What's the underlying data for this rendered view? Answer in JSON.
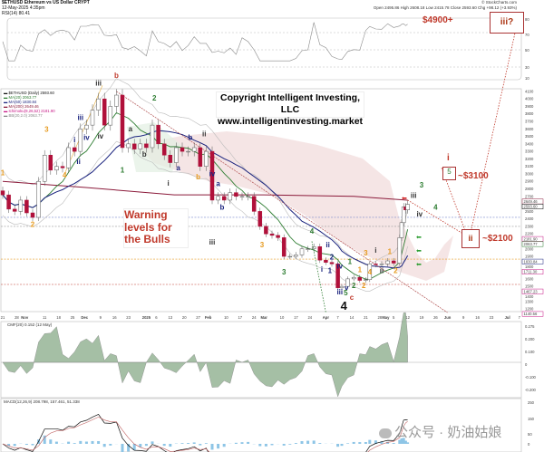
{
  "header": {
    "symbol_line": "$ETHUSD Ethereum vs US Dollar CRYPT",
    "date_line": "12-May-2025 4:35pm",
    "quote_line": "Open 2495.86  High 2608.18  Low 2415.78  Close 2593.60  Chg +98.12 (+3.93%)",
    "credit": "© StockCharts.com",
    "rsi_label": "RSI(14) 80.41"
  },
  "legend": [
    {
      "text": "$ETHUSD (Daily) 2593.60",
      "color": "#111111"
    },
    {
      "text": "MA(20) 2063.77",
      "color": "#2e7d32"
    },
    {
      "text": "MA(50) 1830.84",
      "color": "#1a237e"
    },
    {
      "text": "MA(200) 2649.46",
      "color": "#8b1a3a"
    },
    {
      "text": "Ichimoku(9,26,52) 2181.90",
      "color": "#c71585"
    },
    {
      "text": "BB(20,2.0) 2063.77",
      "color": "#888888"
    }
  ],
  "copyright": {
    "line1": "Copyright Intelligent Investing, LLC",
    "line2": "www.intelligentinvesting.market"
  },
  "warning": {
    "line1": "Warning",
    "line2": "levels for",
    "line3": "the Bulls"
  },
  "targets": {
    "iii_label": "iii?",
    "iii_price": "$4900+",
    "i_label": "i",
    "five_label": "5",
    "i_price": "~$3100",
    "ii_label": "ii",
    "ii_price": "~$2100"
  },
  "cmf_label": "CMF(20) 0.152 (12 May)",
  "macd_label": "MACD(12,26,9) 208.798, 157.461, 51.338",
  "watermark": "公众号 · 奶油姑娘",
  "colors": {
    "down": "#b0103a",
    "up": "#ffffff",
    "annotation_red": "#c0392b",
    "wave_green": "#2e7d32",
    "wave_navy": "#1a237e",
    "wave_orange": "#e69b22",
    "cloud": "#f3dede"
  },
  "chart_data": {
    "type": "candlestick",
    "ylim": [
      1200,
      4100
    ],
    "y_ticks": [
      4100,
      4000,
      3900,
      3800,
      3700,
      3600,
      3500,
      3400,
      3300,
      3200,
      3100,
      3000,
      2900,
      2800,
      2700,
      2500,
      2400,
      2300,
      2200,
      2000,
      1900,
      1800,
      1600,
      1500,
      1400,
      1300,
      1200
    ],
    "price_tags": [
      {
        "value": "2649.46",
        "price": 2649.46,
        "color": "#8b1a3a"
      },
      {
        "value": "2593.60",
        "price": 2593.6,
        "color": "#000000"
      },
      {
        "value": "2181.90",
        "price": 2181.9,
        "color": "#c71585"
      },
      {
        "value": "2063.77",
        "price": 2063.77,
        "color": "#2e7d32"
      },
      {
        "value": "1830.84",
        "price": 1830.84,
        "color": "#1a237e"
      },
      {
        "value": "1711.30",
        "price": 1711.3,
        "color": "#c71585"
      },
      {
        "value": "1467.23",
        "price": 1467.23,
        "color": "#c71585"
      },
      {
        "value": "1140.56",
        "price": 1140.56,
        "color": "#c71585"
      }
    ],
    "x_ticks": [
      [
        "21",
        "2024-10-21"
      ],
      [
        "28",
        "2024-10-28"
      ],
      [
        "Nov",
        "2024-11-01"
      ],
      [
        "11",
        "2024-11-11"
      ],
      [
        "18",
        "2024-11-18"
      ],
      [
        "25",
        "2024-11-25"
      ],
      [
        "Dec",
        "2024-12-01"
      ],
      [
        "9",
        "2024-12-09"
      ],
      [
        "16",
        "2024-12-16"
      ],
      [
        "23",
        "2024-12-23"
      ],
      [
        "2025",
        "2025-01-01"
      ],
      [
        "6",
        "2025-01-06"
      ],
      [
        "13",
        "2025-01-13"
      ],
      [
        "20",
        "2025-01-20"
      ],
      [
        "27",
        "2025-01-27"
      ],
      [
        "Feb",
        "2025-02-01"
      ],
      [
        "10",
        "2025-02-10"
      ],
      [
        "17",
        "2025-02-17"
      ],
      [
        "24",
        "2025-02-24"
      ],
      [
        "Mar",
        "2025-03-01"
      ],
      [
        "10",
        "2025-03-10"
      ],
      [
        "17",
        "2025-03-17"
      ],
      [
        "24",
        "2025-03-24"
      ],
      [
        "Apr",
        "2025-04-01"
      ],
      [
        "7",
        "2025-04-07"
      ],
      [
        "14",
        "2025-04-14"
      ],
      [
        "21",
        "2025-04-21"
      ],
      [
        "28",
        "2025-04-28"
      ],
      [
        "May",
        "2025-05-01"
      ],
      [
        "5",
        "2025-05-05"
      ],
      [
        "12",
        "2025-05-12"
      ],
      [
        "19",
        "2025-05-19"
      ],
      [
        "26",
        "2025-05-26"
      ],
      [
        "Jun",
        "2025-06-01"
      ],
      [
        "9",
        "2025-06-09"
      ],
      [
        "16",
        "2025-06-16"
      ],
      [
        "23",
        "2025-06-23"
      ],
      [
        "Jul",
        "2025-07-01"
      ],
      [
        "7",
        "2025-07-07"
      ]
    ],
    "closes": [
      [
        "2024-10-21",
        2720
      ],
      [
        "2024-10-24",
        2530
      ],
      [
        "2024-10-27",
        2500
      ],
      [
        "2024-10-30",
        2650
      ],
      [
        "2024-11-02",
        2480
      ],
      [
        "2024-11-05",
        2420
      ],
      [
        "2024-11-08",
        2900
      ],
      [
        "2024-11-11",
        3250
      ],
      [
        "2024-11-14",
        3050
      ],
      [
        "2024-11-17",
        3100
      ],
      [
        "2024-11-20",
        3080
      ],
      [
        "2024-11-23",
        3350
      ],
      [
        "2024-11-26",
        3300
      ],
      [
        "2024-11-29",
        3600
      ],
      [
        "2024-12-02",
        3650
      ],
      [
        "2024-12-05",
        3850
      ],
      [
        "2024-12-08",
        4000
      ],
      [
        "2024-12-11",
        3650
      ],
      [
        "2024-12-14",
        3900
      ],
      [
        "2024-12-17",
        4050
      ],
      [
        "2024-12-20",
        3350
      ],
      [
        "2024-12-23",
        3400
      ],
      [
        "2024-12-26",
        3330
      ],
      [
        "2024-12-29",
        3400
      ],
      [
        "2025-01-01",
        3350
      ],
      [
        "2025-01-04",
        3650
      ],
      [
        "2025-01-07",
        3400
      ],
      [
        "2025-01-10",
        3250
      ],
      [
        "2025-01-13",
        3150
      ],
      [
        "2025-01-16",
        3350
      ],
      [
        "2025-01-19",
        3300
      ],
      [
        "2025-01-22",
        3300
      ],
      [
        "2025-01-25",
        3350
      ],
      [
        "2025-01-28",
        3100
      ],
      [
        "2025-01-31",
        3300
      ],
      [
        "2025-02-03",
        2650
      ],
      [
        "2025-02-06",
        2700
      ],
      [
        "2025-02-09",
        2650
      ],
      [
        "2025-02-12",
        2750
      ],
      [
        "2025-02-15",
        2700
      ],
      [
        "2025-02-18",
        2700
      ],
      [
        "2025-02-21",
        2700
      ],
      [
        "2025-02-24",
        2500
      ],
      [
        "2025-02-27",
        2300
      ],
      [
        "2025-03-02",
        2200
      ],
      [
        "2025-03-05",
        2180
      ],
      [
        "2025-03-08",
        2150
      ],
      [
        "2025-03-11",
        1900
      ],
      [
        "2025-03-14",
        1900
      ],
      [
        "2025-03-17",
        1920
      ],
      [
        "2025-03-20",
        2000
      ],
      [
        "2025-03-23",
        2000
      ],
      [
        "2025-03-26",
        2030
      ],
      [
        "2025-03-29",
        1850
      ],
      [
        "2025-04-01",
        1820
      ],
      [
        "2025-04-04",
        1800
      ],
      [
        "2025-04-07",
        1480
      ],
      [
        "2025-04-09",
        1500
      ],
      [
        "2025-04-12",
        1600
      ],
      [
        "2025-04-15",
        1620
      ],
      [
        "2025-04-18",
        1580
      ],
      [
        "2025-04-21",
        1590
      ],
      [
        "2025-04-23",
        1800
      ],
      [
        "2025-04-26",
        1790
      ],
      [
        "2025-04-29",
        1800
      ],
      [
        "2025-05-02",
        1840
      ],
      [
        "2025-05-05",
        1810
      ],
      [
        "2025-05-08",
        2150
      ],
      [
        "2025-05-09",
        2350
      ],
      [
        "2025-05-10",
        2560
      ],
      [
        "2025-05-11",
        2520
      ],
      [
        "2025-05-12",
        2593.6
      ]
    ],
    "ma200": [
      [
        "2024-10-21",
        2900
      ],
      [
        "2024-12-01",
        2820
      ],
      [
        "2025-01-15",
        2720
      ],
      [
        "2025-03-01",
        2720
      ],
      [
        "2025-04-15",
        2700
      ],
      [
        "2025-05-12",
        2649.46
      ]
    ],
    "horizontal_levels": [
      {
        "price": 2420,
        "color": "#7986cb"
      },
      {
        "price": 2300,
        "color": "#999999"
      },
      {
        "price": 1864,
        "color": "#e69b22"
      },
      {
        "price": 1526,
        "color": "#c0392b"
      }
    ],
    "wave_labels": [
      {
        "text": "iii",
        "date": "2024-12-08",
        "price": 4180,
        "color": "#333333"
      },
      {
        "text": "b",
        "date": "2024-12-17",
        "price": 4280,
        "color": "#c0392b"
      },
      {
        "text": "3",
        "date": "2024-11-12",
        "price": 3560,
        "color": "#e69b22"
      },
      {
        "text": "iii",
        "date": "2024-11-29",
        "price": 3720,
        "color": "#1a237e"
      },
      {
        "text": "i",
        "date": "2024-11-26",
        "price": 3420,
        "color": "#1a237e"
      },
      {
        "text": "iv",
        "date": "2024-12-02",
        "price": 3450,
        "color": "#1a237e"
      },
      {
        "text": "iv",
        "date": "2024-12-09",
        "price": 3470,
        "color": "#333333"
      },
      {
        "text": "ii",
        "date": "2024-11-28",
        "price": 3130,
        "color": "#1a237e"
      },
      {
        "text": "4",
        "date": "2024-11-21",
        "price": 2950,
        "color": "#e69b22"
      },
      {
        "text": "1",
        "date": "2024-12-20",
        "price": 3020,
        "color": "#2e7d32"
      },
      {
        "text": "1",
        "date": "2024-10-21",
        "price": 2980,
        "color": "#e69b22"
      },
      {
        "text": "2",
        "date": "2024-11-05",
        "price": 2290,
        "color": "#e69b22"
      },
      {
        "text": "a",
        "date": "2024-12-24",
        "price": 3570,
        "color": "#333333"
      },
      {
        "text": "b",
        "date": "2024-12-31",
        "price": 3230,
        "color": "#333333"
      },
      {
        "text": "2",
        "date": "2025-01-05",
        "price": 3980,
        "color": "#2e7d32"
      },
      {
        "text": "i",
        "date": "2025-01-12",
        "price": 2840,
        "color": "#333333"
      },
      {
        "text": "a",
        "date": "2025-01-17",
        "price": 3050,
        "color": "#1a237e"
      },
      {
        "text": "b",
        "date": "2025-01-23",
        "price": 3450,
        "color": "#1a237e"
      },
      {
        "text": "b",
        "date": "2025-01-27",
        "price": 2930,
        "color": "#e69b22"
      },
      {
        "text": "ii",
        "date": "2025-01-30",
        "price": 3500,
        "color": "#333333"
      },
      {
        "text": "iv",
        "date": "2025-02-03",
        "price": 2970,
        "color": "#1a237e"
      },
      {
        "text": "a",
        "date": "2025-02-06",
        "price": 2870,
        "color": "#1a237e"
      },
      {
        "text": "b",
        "date": "2025-02-08",
        "price": 2520,
        "color": "#1a237e"
      },
      {
        "text": "iii",
        "date": "2025-02-03",
        "price": 2060,
        "color": "#333333"
      },
      {
        "text": "3",
        "date": "2025-02-28",
        "price": 2020,
        "color": "#e69b22"
      },
      {
        "text": "3",
        "date": "2025-03-11",
        "price": 1660,
        "color": "#2e7d32"
      },
      {
        "text": "4",
        "date": "2025-03-25",
        "price": 2200,
        "color": "#2e7d32"
      },
      {
        "text": "i",
        "date": "2025-03-30",
        "price": 1695,
        "color": "#1a237e"
      },
      {
        "text": "ii",
        "date": "2025-04-02",
        "price": 2020,
        "color": "#1a237e"
      },
      {
        "text": "1",
        "date": "2025-04-03",
        "price": 1680,
        "color": "#1a237e"
      },
      {
        "text": "2",
        "date": "2025-04-04",
        "price": 1860,
        "color": "#1a237e"
      },
      {
        "text": "iv",
        "date": "2025-04-08",
        "price": 1740,
        "color": "#1a237e"
      },
      {
        "text": "1",
        "date": "2025-04-13",
        "price": 1800,
        "color": "#2e7d32"
      },
      {
        "text": "iii",
        "date": "2025-04-08",
        "price": 1357,
        "color": "#1a237e"
      },
      {
        "text": "v",
        "date": "2025-04-10",
        "price": 1450,
        "color": "#1a237e"
      },
      {
        "text": "5",
        "date": "2025-04-11",
        "price": 1380,
        "color": "#2e7d32"
      },
      {
        "text": "c",
        "date": "2025-04-14",
        "price": 1320,
        "color": "#c0392b"
      },
      {
        "text": "2",
        "date": "2025-04-15",
        "price": 1480,
        "color": "#2e7d32"
      },
      {
        "text": "1",
        "date": "2025-04-18",
        "price": 1690,
        "color": "#e69b22"
      },
      {
        "text": "2",
        "date": "2025-04-20",
        "price": 1480,
        "color": "#e69b22"
      },
      {
        "text": "3",
        "date": "2025-04-21",
        "price": 1910,
        "color": "#e69b22"
      },
      {
        "text": "4",
        "date": "2025-04-23",
        "price": 1660,
        "color": "#e69b22"
      },
      {
        "text": "i",
        "date": "2025-04-26",
        "price": 1950,
        "color": "#333333"
      },
      {
        "text": "ii",
        "date": "2025-04-29",
        "price": 1680,
        "color": "#333333"
      },
      {
        "text": "1",
        "date": "2025-05-03",
        "price": 1930,
        "color": "#e69b22"
      },
      {
        "text": "2",
        "date": "2025-05-06",
        "price": 1680,
        "color": "#e69b22"
      },
      {
        "text": "iii",
        "date": "2025-05-15",
        "price": 2680,
        "color": "#333333"
      },
      {
        "text": "iv",
        "date": "2025-05-18",
        "price": 2430,
        "color": "#333333"
      },
      {
        "text": "3",
        "date": "2025-05-19",
        "price": 2820,
        "color": "#2e7d32"
      },
      {
        "text": "4",
        "date": "2025-05-26",
        "price": 2520,
        "color": "#2e7d32"
      }
    ],
    "big_label": {
      "text": "4",
      "date": "2025-04-10",
      "price": 1190,
      "color": "#111111"
    },
    "projection_path": [
      [
        "2025-05-12",
        2650
      ],
      [
        "2025-06-12",
        2150
      ],
      [
        "2025-07-05",
        4900
      ]
    ],
    "fall_path": [
      [
        "2025-05-12",
        2650
      ],
      [
        "2025-06-12",
        2150
      ]
    ],
    "i_path": [
      [
        "2025-05-29",
        3080
      ],
      [
        "2025-06-11",
        2160
      ]
    ]
  }
}
